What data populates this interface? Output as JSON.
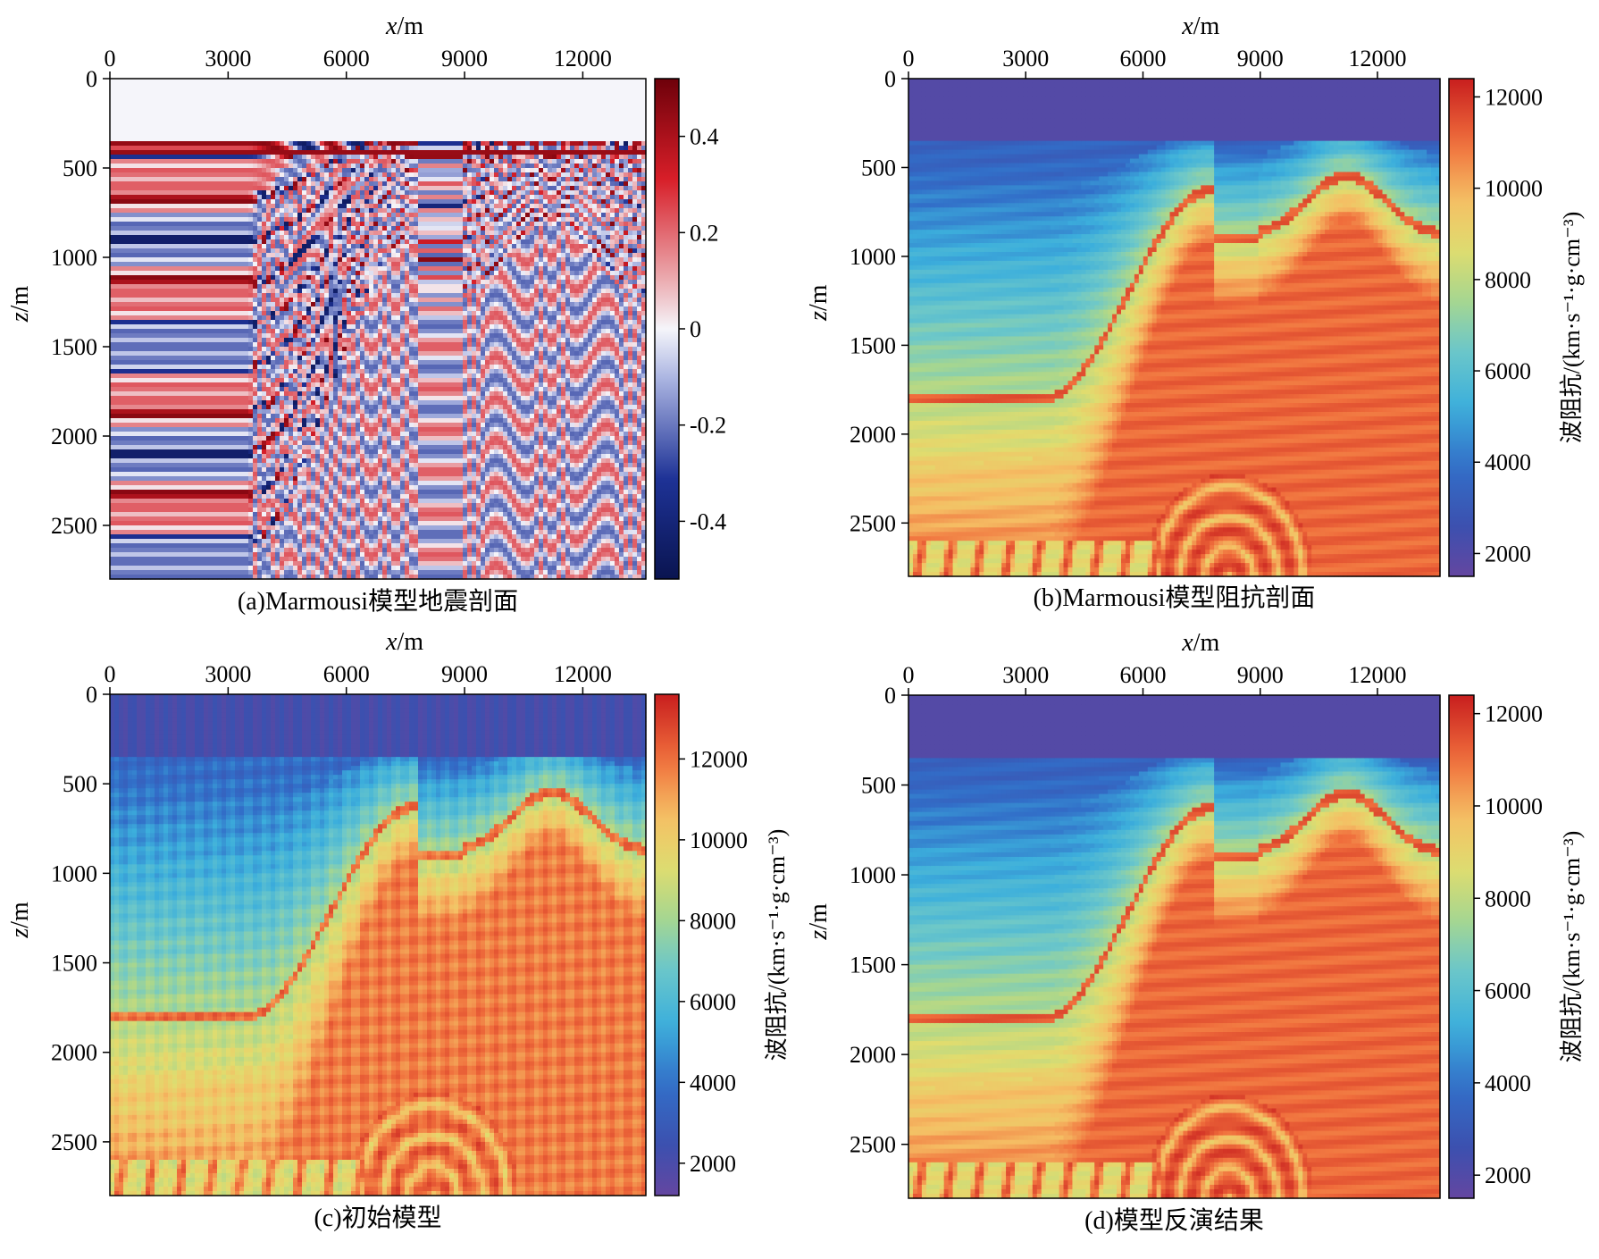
{
  "chart_data": [
    {
      "type": "heatmap",
      "caption": "(a)Marmousi模型地震剖面",
      "xlabel_var": "x",
      "xlabel_unit": "/m",
      "ylabel_var": "z",
      "ylabel_unit": "/m",
      "x_ticks": [
        "0",
        "3000",
        "6000",
        "9000",
        "12000"
      ],
      "y_ticks": [
        "0",
        "500",
        "1000",
        "1500",
        "2000",
        "2500"
      ],
      "xlim": [
        0,
        13600
      ],
      "ylim": [
        0,
        2800
      ],
      "water_depth": 360,
      "colormap": "seismic",
      "colorbar_ticks": [
        "0.4",
        "0.2",
        "0",
        "-0.2",
        "-0.4"
      ],
      "colorbar_range": [
        -0.52,
        0.52
      ],
      "colorbar_label": ""
    },
    {
      "type": "heatmap",
      "caption": "(b)Marmousi模型阻抗剖面",
      "xlabel_var": "x",
      "xlabel_unit": "/m",
      "ylabel_var": "z",
      "ylabel_unit": "/m",
      "x_ticks": [
        "0",
        "3000",
        "6000",
        "9000",
        "12000"
      ],
      "y_ticks": [
        "0",
        "500",
        "1000",
        "1500",
        "2000",
        "2500"
      ],
      "xlim": [
        0,
        13600
      ],
      "ylim": [
        0,
        2800
      ],
      "water_depth": 360,
      "colormap": "jet-like",
      "colorbar_ticks": [
        "12000",
        "10000",
        "8000",
        "6000",
        "4000",
        "2000"
      ],
      "colorbar_range": [
        1500,
        12400
      ],
      "colorbar_label": "波阻抗/(km·s⁻¹·g·cm⁻³)"
    },
    {
      "type": "heatmap",
      "caption": "(c)初始模型",
      "xlabel_var": "x",
      "xlabel_unit": "/m",
      "ylabel_var": "z",
      "ylabel_unit": "/m",
      "x_ticks": [
        "0",
        "3000",
        "6000",
        "9000",
        "12000"
      ],
      "y_ticks": [
        "0",
        "500",
        "1000",
        "1500",
        "2000",
        "2500"
      ],
      "xlim": [
        0,
        13600
      ],
      "ylim": [
        0,
        2800
      ],
      "water_depth": 360,
      "colormap": "jet-like",
      "colorbar_ticks": [
        "12000",
        "10000",
        "8000",
        "6000",
        "4000",
        "2000"
      ],
      "colorbar_range": [
        1200,
        13600
      ],
      "colorbar_label": "波阻抗/(km·s⁻¹·g·cm⁻³)"
    },
    {
      "type": "heatmap",
      "caption": "(d)模型反演结果",
      "xlabel_var": "x",
      "xlabel_unit": "/m",
      "ylabel_var": "z",
      "ylabel_unit": "/m",
      "x_ticks": [
        "0",
        "3000",
        "6000",
        "9000",
        "12000"
      ],
      "y_ticks": [
        "0",
        "500",
        "1000",
        "1500",
        "2000",
        "2500"
      ],
      "xlim": [
        0,
        13600
      ],
      "ylim": [
        0,
        2800
      ],
      "water_depth": 360,
      "colormap": "jet-like",
      "colorbar_ticks": [
        "12000",
        "10000",
        "8000",
        "6000",
        "4000",
        "2000"
      ],
      "colorbar_range": [
        1500,
        12400
      ],
      "colorbar_label": "波阻抗/(km·s⁻¹·g·cm⁻³)"
    }
  ]
}
